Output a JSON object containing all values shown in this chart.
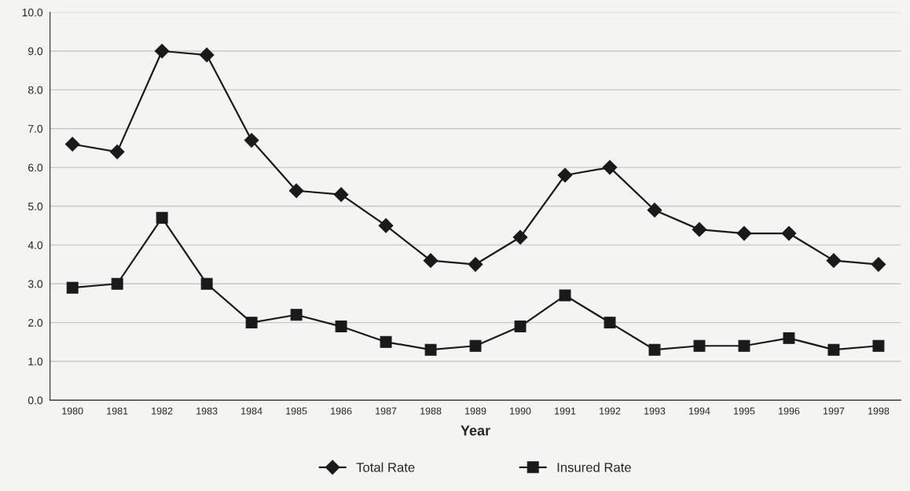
{
  "chart_data": {
    "type": "line",
    "xlabel": "Year",
    "categories": [
      "1980",
      "1981",
      "1982",
      "1983",
      "1984",
      "1985",
      "1986",
      "1987",
      "1988",
      "1989",
      "1990",
      "1991",
      "1992",
      "1993",
      "1994",
      "1995",
      "1996",
      "1997",
      "1998"
    ],
    "series": [
      {
        "name": "Total Rate",
        "color": "#1a1a1a",
        "marker": "diamond",
        "values": [
          6.6,
          6.4,
          9.0,
          8.9,
          6.7,
          5.4,
          5.3,
          4.5,
          3.6,
          3.5,
          4.2,
          5.8,
          6.0,
          4.9,
          4.4,
          4.3,
          4.3,
          3.6,
          3.5
        ]
      },
      {
        "name": "Insured Rate",
        "color": "#1a1a1a",
        "marker": "square",
        "values": [
          2.9,
          3.0,
          4.7,
          3.0,
          2.0,
          2.2,
          1.9,
          1.5,
          1.3,
          1.4,
          1.9,
          2.7,
          2.0,
          1.3,
          1.4,
          1.4,
          1.6,
          1.3,
          1.4
        ]
      }
    ],
    "ylim": [
      0,
      10
    ],
    "yticks": [
      {
        "value": 0,
        "label": "0.0"
      },
      {
        "value": 1,
        "label": "1.0"
      },
      {
        "value": 2,
        "label": "2.0"
      },
      {
        "value": 3,
        "label": "3.0"
      },
      {
        "value": 4,
        "label": "4.0"
      },
      {
        "value": 5,
        "label": "5.0"
      },
      {
        "value": 6,
        "label": "6.0"
      },
      {
        "value": 7,
        "label": "7.0"
      },
      {
        "value": 8,
        "label": "8.0"
      },
      {
        "value": 9,
        "label": "9.0"
      },
      {
        "value": 10,
        "label": "10.0"
      }
    ],
    "grid": "y",
    "legend": "bottom",
    "line_style": "solid"
  }
}
